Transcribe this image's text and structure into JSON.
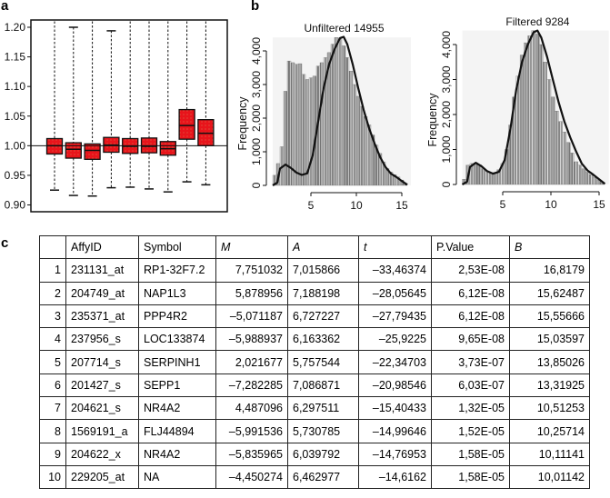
{
  "panels": {
    "a": "a",
    "b": "b",
    "c": "c"
  },
  "chart_data": [
    {
      "id": "a",
      "type": "boxplot",
      "title": "",
      "xlabel": "",
      "ylabel": "",
      "ylim": [
        0.89,
        1.21
      ],
      "yticks": [
        0.9,
        0.95,
        1.0,
        1.05,
        1.1,
        1.15,
        1.2
      ],
      "ytick_labels": [
        "0.90",
        "0.95",
        "1.00",
        "1.05",
        "1.10",
        "1.15",
        "1.20"
      ],
      "reference_line": 1.0,
      "box_color": "#e8141b",
      "boxes": [
        {
          "whisker_low": 0.925,
          "q1": 0.986,
          "median": 1.0,
          "q3": 1.012,
          "whisker_high": 1.21
        },
        {
          "whisker_low": 0.916,
          "q1": 0.979,
          "median": 0.994,
          "q3": 1.005,
          "whisker_high": 1.2
        },
        {
          "whisker_low": 0.915,
          "q1": 0.977,
          "median": 0.992,
          "q3": 1.003,
          "whisker_high": 1.21
        },
        {
          "whisker_low": 0.929,
          "q1": 0.989,
          "median": 1.001,
          "q3": 1.014,
          "whisker_high": 1.194
        },
        {
          "whisker_low": 0.93,
          "q1": 0.987,
          "median": 0.999,
          "q3": 1.012,
          "whisker_high": 1.21
        },
        {
          "whisker_low": 0.927,
          "q1": 0.988,
          "median": 0.999,
          "q3": 1.013,
          "whisker_high": 1.21
        },
        {
          "whisker_low": 0.922,
          "q1": 0.984,
          "median": 0.995,
          "q3": 1.007,
          "whisker_high": 1.21
        },
        {
          "whisker_low": 0.939,
          "q1": 1.011,
          "median": 1.034,
          "q3": 1.061,
          "whisker_high": 1.21
        },
        {
          "whisker_low": 0.934,
          "q1": 1.0,
          "median": 1.021,
          "q3": 1.044,
          "whisker_high": 1.21
        }
      ]
    },
    {
      "id": "b-unfiltered",
      "type": "histogram",
      "title": "Unfiltered 14955",
      "xlabel": "",
      "ylabel": "Frequency",
      "xlim": [
        0,
        16
      ],
      "ylim": [
        0,
        4400
      ],
      "xticks": [
        5,
        10,
        15
      ],
      "yticks": [
        0,
        1000,
        2000,
        3000,
        4000
      ],
      "ytick_labels": [
        "0",
        "1,000",
        "2,000",
        "3,000",
        "4,000"
      ],
      "bin_centers": [
        1.0,
        1.4,
        1.8,
        2.2,
        2.6,
        3.0,
        3.4,
        3.8,
        4.2,
        4.6,
        5.0,
        5.4,
        5.8,
        6.2,
        6.6,
        7.0,
        7.4,
        7.8,
        8.2,
        8.6,
        9.0,
        9.4,
        9.8,
        10.2,
        10.6,
        11.0,
        11.4,
        11.8,
        12.2,
        12.6,
        13.0,
        13.4,
        13.8,
        14.2,
        14.6,
        15.0,
        15.4
      ],
      "counts": [
        300,
        650,
        1150,
        2800,
        3700,
        3650,
        3600,
        3620,
        3300,
        3150,
        3200,
        3250,
        3550,
        3650,
        3800,
        3950,
        4200,
        4400,
        4380,
        4150,
        3800,
        3400,
        3000,
        2650,
        2350,
        2050,
        1800,
        1500,
        1200,
        950,
        700,
        500,
        400,
        320,
        250,
        160,
        60
      ],
      "density_curve": [
        [
          0.8,
          0.0
        ],
        [
          1.3,
          80
        ],
        [
          1.6,
          500
        ],
        [
          2.2,
          620
        ],
        [
          2.8,
          520
        ],
        [
          3.4,
          380
        ],
        [
          4.0,
          310
        ],
        [
          4.6,
          360
        ],
        [
          5.2,
          900
        ],
        [
          5.8,
          1900
        ],
        [
          6.4,
          2900
        ],
        [
          7.0,
          3600
        ],
        [
          7.6,
          4050
        ],
        [
          8.2,
          4380
        ],
        [
          8.6,
          4420
        ],
        [
          9.0,
          4200
        ],
        [
          9.6,
          3600
        ],
        [
          10.2,
          2900
        ],
        [
          10.8,
          2250
        ],
        [
          11.4,
          1700
        ],
        [
          12.0,
          1250
        ],
        [
          12.6,
          850
        ],
        [
          13.2,
          550
        ],
        [
          13.8,
          350
        ],
        [
          14.4,
          250
        ],
        [
          15.0,
          130
        ],
        [
          15.6,
          20
        ]
      ]
    },
    {
      "id": "b-filtered",
      "type": "histogram",
      "title": "Filtered 9284",
      "xlabel": "",
      "ylabel": "Frequency",
      "xlim": [
        0,
        16
      ],
      "ylim": [
        0,
        4400
      ],
      "xticks": [
        5,
        10,
        15
      ],
      "yticks": [
        0,
        1000,
        2000,
        3000,
        4000
      ],
      "ytick_labels": [
        "0",
        "1,000",
        "2,000",
        "3,000",
        "4,000"
      ],
      "bin_centers": [
        1.0,
        1.4,
        1.8,
        2.2,
        2.6,
        3.0,
        3.4,
        3.8,
        4.2,
        4.6,
        5.0,
        5.4,
        5.8,
        6.2,
        6.6,
        7.0,
        7.4,
        7.8,
        8.2,
        8.6,
        9.0,
        9.4,
        9.8,
        10.2,
        10.6,
        11.0,
        11.4,
        11.8,
        12.2,
        12.6,
        13.0,
        13.4,
        13.8,
        14.2,
        14.6,
        15.0,
        15.4
      ],
      "counts": [
        150,
        550,
        600,
        620,
        560,
        450,
        380,
        330,
        340,
        420,
        600,
        1000,
        1700,
        2500,
        3100,
        3700,
        4050,
        4250,
        4400,
        4300,
        4000,
        3500,
        3000,
        2500,
        2100,
        1800,
        1500,
        1200,
        900,
        650,
        550,
        450,
        350,
        280,
        200,
        130,
        40
      ],
      "density_curve": [
        [
          0.8,
          0.0
        ],
        [
          1.3,
          80
        ],
        [
          1.6,
          500
        ],
        [
          2.2,
          620
        ],
        [
          2.8,
          520
        ],
        [
          3.4,
          380
        ],
        [
          4.0,
          310
        ],
        [
          4.6,
          360
        ],
        [
          5.2,
          700
        ],
        [
          5.8,
          1600
        ],
        [
          6.4,
          2700
        ],
        [
          7.0,
          3500
        ],
        [
          7.6,
          4000
        ],
        [
          8.2,
          4350
        ],
        [
          8.6,
          4400
        ],
        [
          9.0,
          4200
        ],
        [
          9.6,
          3650
        ],
        [
          10.2,
          3000
        ],
        [
          10.8,
          2350
        ],
        [
          11.4,
          1800
        ],
        [
          12.0,
          1350
        ],
        [
          12.6,
          950
        ],
        [
          13.2,
          600
        ],
        [
          13.8,
          400
        ],
        [
          14.4,
          280
        ],
        [
          15.0,
          150
        ],
        [
          15.6,
          20
        ]
      ]
    },
    {
      "id": "c",
      "type": "table",
      "columns": [
        "",
        "AffyID",
        "Symbol",
        "M",
        "A",
        "t",
        "P.Value",
        "B"
      ],
      "rows": [
        [
          "1",
          "231131_at",
          "RP1-32F7.2",
          "7,751032",
          "7,015866",
          "–33,46374",
          "2,53E-08",
          "16,8179"
        ],
        [
          "2",
          "204749_at",
          "NAP1L3",
          "5,878956",
          "7,188198",
          "–28,05645",
          "6,12E-08",
          "15,62487"
        ],
        [
          "3",
          "235371_at",
          "PPP4R2",
          "–5,071187",
          "6,727227",
          "–27,79435",
          "6,12E-08",
          "15,55666"
        ],
        [
          "4",
          "237956_s",
          "LOC133874",
          "–5,988937",
          "6,163362",
          "–25,9225",
          "9,65E-08",
          "15,03597"
        ],
        [
          "5",
          "207714_s",
          "SERPINH1",
          "2,021677",
          "5,757544",
          "–22,34703",
          "3,73E-07",
          "13,85026"
        ],
        [
          "6",
          "201427_s",
          "SEPP1",
          "–7,282285",
          "7,086871",
          "–20,98546",
          "6,03E-07",
          "13,31925"
        ],
        [
          "7",
          "204621_s",
          "NR4A2",
          "4,487096",
          "6,297511",
          "–15,40433",
          "1,32E-05",
          "10,51253"
        ],
        [
          "8",
          "1569191_a",
          "FLJ44894",
          "–5,991536",
          "5,730785",
          "–14,99646",
          "1,52E-05",
          "10,25714"
        ],
        [
          "9",
          "204622_x",
          "NR4A2",
          "–5,835965",
          "6,039792",
          "–14,76953",
          "1,58E-05",
          "10,11141"
        ],
        [
          "10",
          "229205_at",
          "NA",
          "–4,450274",
          "6,462977",
          "–14,6162",
          "1,58E-05",
          "10,01142"
        ]
      ]
    }
  ]
}
